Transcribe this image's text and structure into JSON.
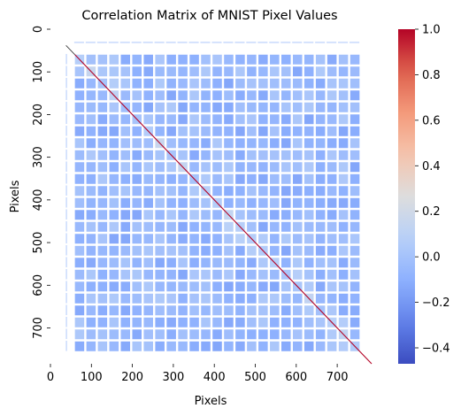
{
  "chart_data": {
    "type": "heatmap",
    "title": "Correlation Matrix of MNIST Pixel Values",
    "xlabel": "Pixels",
    "ylabel": "Pixels",
    "n": 784,
    "image_side": 28,
    "xlim": [
      0,
      784
    ],
    "ylim": [
      0,
      784
    ],
    "x_ticks": [
      0,
      100,
      200,
      300,
      400,
      500,
      600,
      700
    ],
    "y_ticks": [
      0,
      100,
      200,
      300,
      400,
      500,
      600,
      700
    ],
    "colorbar": {
      "colormap": "coolwarm",
      "min": -0.47,
      "max": 1.0,
      "ticks": [
        -0.4,
        -0.2,
        0.0,
        0.2,
        0.4,
        0.6,
        0.8,
        1.0
      ],
      "tick_labels": [
        "−0.4",
        "−0.2",
        "0.0",
        "0.2",
        "0.4",
        "0.6",
        "0.8",
        "1.0"
      ]
    },
    "undefined_pixel_color": "#ffffff",
    "diagonal_value": 1.0,
    "background_correlation": -0.05
  }
}
